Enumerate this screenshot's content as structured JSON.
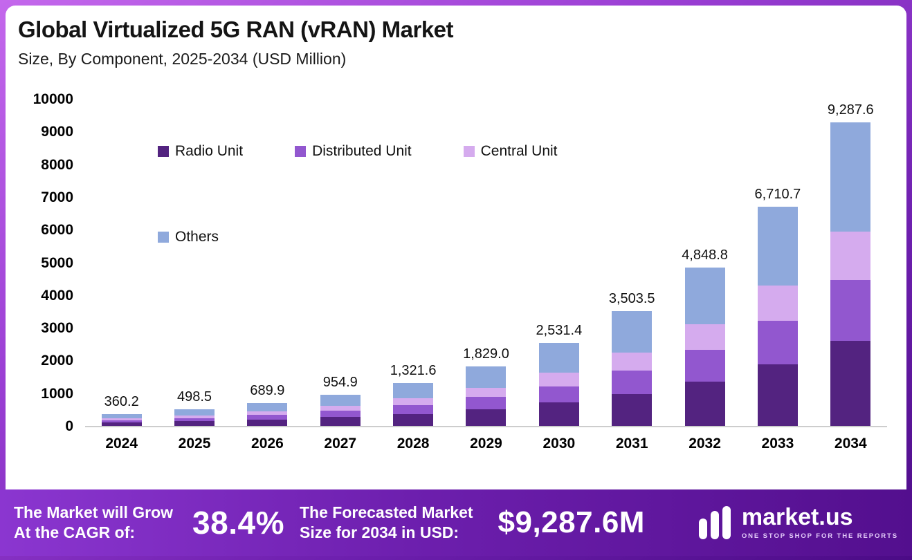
{
  "header": {
    "title": "Global Virtualized 5G RAN (vRAN) Market",
    "subtitle": "Size, By Component, 2025-2034 (USD Million)"
  },
  "chart_data": {
    "type": "bar",
    "stacked": true,
    "title": "Global Virtualized 5G RAN (vRAN) Market Size, By Component, 2025-2034 (USD Million)",
    "categories": [
      "2024",
      "2025",
      "2026",
      "2027",
      "2028",
      "2029",
      "2030",
      "2031",
      "2032",
      "2033",
      "2034"
    ],
    "totals": [
      360.2,
      498.5,
      689.9,
      954.9,
      1321.6,
      1829.0,
      2531.4,
      3503.5,
      4848.8,
      6710.7,
      9287.6
    ],
    "total_labels": [
      "360.2",
      "498.5",
      "689.9",
      "954.9",
      "1,321.6",
      "1,829.0",
      "2,531.4",
      "3,503.5",
      "4,848.8",
      "6,710.7",
      "9,287.6"
    ],
    "series": [
      {
        "name": "Radio Unit",
        "color": "#532380",
        "values": [
          100.9,
          139.6,
          193.2,
          267.4,
          370.0,
          512.1,
          708.8,
          981.0,
          1357.7,
          1879.0,
          2600.5
        ]
      },
      {
        "name": "Distributed Unit",
        "color": "#9257cf",
        "values": [
          72.0,
          99.7,
          138.0,
          191.0,
          264.3,
          365.8,
          506.3,
          700.7,
          969.8,
          1342.1,
          1857.5
        ]
      },
      {
        "name": "Central Unit",
        "color": "#d5abee",
        "values": [
          57.6,
          79.8,
          110.4,
          152.8,
          211.5,
          292.6,
          405.0,
          560.6,
          775.8,
          1073.7,
          1486.0
        ]
      },
      {
        "name": "Others",
        "color": "#8fa9dc",
        "values": [
          129.7,
          179.4,
          248.3,
          343.7,
          475.8,
          658.5,
          911.3,
          1261.2,
          1745.5,
          2415.9,
          3343.6
        ]
      }
    ],
    "xlabel": "",
    "ylabel": "",
    "ylim": [
      0,
      10000
    ],
    "y_ticks": [
      0,
      1000,
      2000,
      3000,
      4000,
      5000,
      6000,
      7000,
      8000,
      9000,
      10000
    ],
    "grid": false,
    "legend_position": "inside-upper-left"
  },
  "banner": {
    "cagr_label_line1": "The Market will Grow",
    "cagr_label_line2": "At the CAGR of:",
    "cagr_value": "38.4%",
    "forecast_label_line1": "The Forecasted Market",
    "forecast_label_line2": "Size for 2034 in USD:",
    "forecast_value": "$9,287.6M",
    "brand": "market.us",
    "tagline": "ONE STOP SHOP FOR THE REPORTS"
  },
  "colors": {
    "frame_gradient_start": "#c468ec",
    "frame_gradient_end": "#4b0b86",
    "banner_gradient_start": "#8b36d0",
    "banner_gradient_end": "#530f8e",
    "axis_text": "#000000",
    "title_text": "#141414"
  }
}
